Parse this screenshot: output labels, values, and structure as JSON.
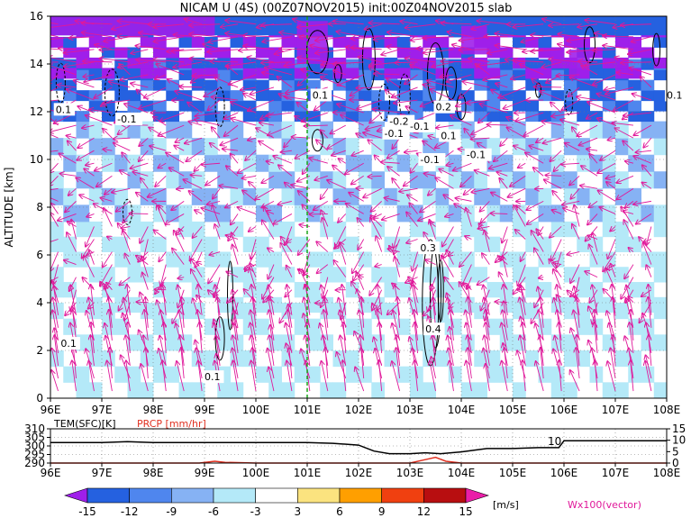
{
  "chart_data": [
    {
      "type": "heatmap",
      "title": "NICAM U (4S) (00Z07NOV2015) init:00Z04NOV2015 slab",
      "xlabel": "",
      "ylabel": "ALTITUDE [km]",
      "xlim": [
        96,
        108
      ],
      "ylim": [
        0,
        16
      ],
      "x_ticks": [
        "96E",
        "97E",
        "98E",
        "99E",
        "100E",
        "101E",
        "102E",
        "103E",
        "104E",
        "105E",
        "106E",
        "107E",
        "108E"
      ],
      "y_ticks": [
        "0",
        "2",
        "4",
        "6",
        "8",
        "10",
        "12",
        "14",
        "16"
      ],
      "marker_line_x": 101,
      "contour_labels": [
        "-0.1",
        "-0.1",
        "-0.1",
        "-0.2",
        "-0.1",
        "0.1",
        "0.1",
        "0.2",
        "0.1",
        "0.3",
        "0.4",
        "-0.1",
        "0.1",
        "0.1",
        "0.1"
      ],
      "colorbar": {
        "levels": [
          "-15",
          "-12",
          "-9",
          "-6",
          "-3",
          "3",
          "6",
          "9",
          "12",
          "15"
        ],
        "colors": [
          "#9f1fea",
          "#2561e0",
          "#4f86ee",
          "#86b2f4",
          "#b4e9f8",
          "#ffffff",
          "#fbe37f",
          "#ff9f00",
          "#f04010",
          "#b80e10",
          "#ea1ea8"
        ],
        "unit": "[m/s]"
      },
      "vector_label": "Wx100(vector)",
      "layers": [
        {
          "z_min": 0,
          "z_max": 4,
          "u": -4,
          "w_scale": 0.5
        },
        {
          "z_min": 4,
          "z_max": 7.5,
          "u": -4,
          "w_scale": 0.2
        },
        {
          "z_min": 7.5,
          "z_max": 11,
          "u": -6,
          "w_scale": 0.1
        },
        {
          "z_min": 11,
          "z_max": 14,
          "u": -9,
          "w_scale": 0.1
        },
        {
          "z_min": 14,
          "z_max": 16,
          "u": -14,
          "w_scale": 0.05
        }
      ]
    },
    {
      "type": "line",
      "series": [
        {
          "name": "TEM(SFC)[K]",
          "color": "#000000",
          "axis": "left",
          "x": [
            96,
            96.5,
            97,
            97.5,
            98,
            98.5,
            99,
            99.5,
            100,
            100.5,
            101,
            101.5,
            102,
            102.3,
            102.6,
            103,
            103.3,
            103.6,
            104,
            104.5,
            105,
            105.5,
            105.9,
            106,
            107,
            108
          ],
          "values": [
            302,
            302,
            302,
            302.5,
            302,
            302,
            302,
            302,
            302,
            302,
            302,
            301.5,
            300.5,
            297,
            295.5,
            295.5,
            296,
            295.5,
            296.5,
            298.5,
            298.5,
            299,
            299,
            303,
            303,
            303
          ]
        },
        {
          "name": "PRCP [mm/hr]",
          "color": "#e03020",
          "axis": "right",
          "x": [
            96,
            98.9,
            99.2,
            99.4,
            100,
            103,
            103.3,
            103.5,
            103.7,
            104,
            108
          ],
          "values": [
            0,
            0,
            0.8,
            0.3,
            0,
            0,
            1.5,
            2.5,
            0.8,
            0,
            0
          ]
        }
      ],
      "ylim_left": [
        290,
        310
      ],
      "y_ticks_left": [
        "290",
        "295",
        "300",
        "305",
        "310"
      ],
      "ylim_right": [
        0,
        15
      ],
      "y_ticks_right": [
        "0",
        "5",
        "10",
        "15"
      ],
      "annotation": "10",
      "x_ticks": [
        "96E",
        "97E",
        "98E",
        "99E",
        "100E",
        "101E",
        "102E",
        "103E",
        "104E",
        "105E",
        "106E",
        "107E",
        "108E"
      ]
    }
  ]
}
